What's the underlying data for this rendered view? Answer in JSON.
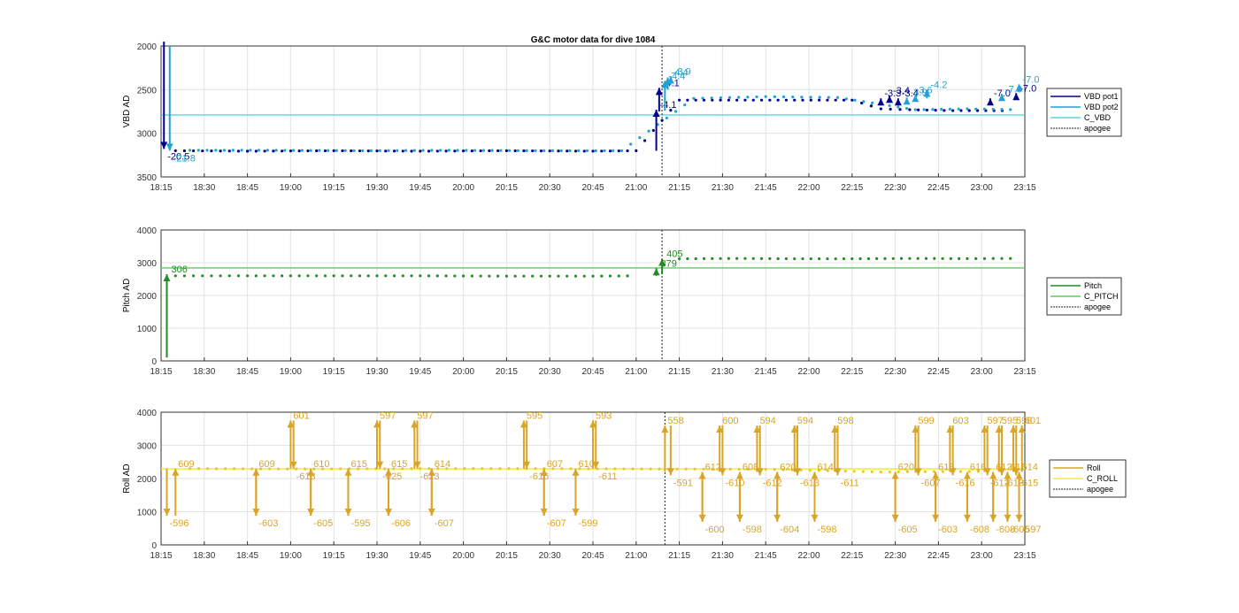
{
  "title": "G&C motor data for dive 1084",
  "x_ticks": [
    "18:15",
    "18:30",
    "18:45",
    "19:00",
    "19:15",
    "19:30",
    "19:45",
    "20:00",
    "20:15",
    "20:30",
    "20:45",
    "21:00",
    "21:15",
    "21:30",
    "21:45",
    "22:00",
    "22:15",
    "22:30",
    "22:45",
    "23:00",
    "23:15"
  ],
  "chart_data": [
    {
      "type": "line",
      "ylabel": "VBD AD",
      "xlim": [
        0,
        300
      ],
      "ylim": [
        3500,
        2000
      ],
      "yticks": [
        2000,
        2500,
        3000,
        3500
      ],
      "grid": true,
      "legend": "right",
      "apogee_x": 174,
      "series": [
        {
          "name": "VBD pot1",
          "color": "#00008b"
        },
        {
          "name": "VBD pot2",
          "color": "#1fa2d6"
        },
        {
          "name": "C_VBD",
          "color": "#55d7dd",
          "value": 2790
        },
        {
          "name": "apogee",
          "color": "#222222"
        }
      ],
      "dots_pot1": [
        [
          5,
          3200
        ],
        [
          30,
          3205
        ],
        [
          60,
          3200
        ],
        [
          90,
          3205
        ],
        [
          120,
          3200
        ],
        [
          150,
          3205
        ],
        [
          165,
          3200
        ],
        [
          180,
          2620
        ],
        [
          200,
          2620
        ],
        [
          220,
          2620
        ],
        [
          240,
          2620
        ],
        [
          250,
          2720
        ],
        [
          260,
          2730
        ],
        [
          275,
          2740
        ],
        [
          295,
          2740
        ]
      ],
      "dots_pot2": [
        [
          10,
          3195
        ],
        [
          40,
          3195
        ],
        [
          70,
          3200
        ],
        [
          100,
          3195
        ],
        [
          130,
          3200
        ],
        [
          160,
          3200
        ],
        [
          185,
          2600
        ],
        [
          210,
          2580
        ],
        [
          235,
          2590
        ],
        [
          262,
          2730
        ],
        [
          280,
          2720
        ],
        [
          298,
          2730
        ]
      ],
      "vbd_moves": [
        {
          "x": 1,
          "from": 1950,
          "to": 3180,
          "color": "#00008b",
          "label": "-20.5"
        },
        {
          "x": 3,
          "from": 2000,
          "to": 3200,
          "color": "#1fa2d6",
          "label": "-21.8"
        },
        {
          "x": 172,
          "from": 3200,
          "to": 2730,
          "color": "#00008b",
          "label": "-4.1"
        },
        {
          "x": 173,
          "from": 2750,
          "to": 2480,
          "color": "#00008b",
          "label": "-4.1"
        },
        {
          "x": 175,
          "from": 2740,
          "to": 2400,
          "color": "#1fa2d6",
          "label": "-4.4"
        },
        {
          "x": 176,
          "from": 2500,
          "to": 2360,
          "color": "#1fa2d6",
          "label": "-4.4"
        },
        {
          "x": 177,
          "from": 2400,
          "to": 2350,
          "color": "#1fa2d6",
          "label": "-3.9"
        },
        {
          "x": 250,
          "from": 2650,
          "to": 2600,
          "color": "#00008b",
          "label": "-3.3"
        },
        {
          "x": 253,
          "from": 2650,
          "to": 2570,
          "color": "#00008b",
          "label": "-3.4"
        },
        {
          "x": 256,
          "from": 2650,
          "to": 2600,
          "color": "#00008b",
          "label": "-3.4"
        },
        {
          "x": 259,
          "from": 2630,
          "to": 2590,
          "color": "#1fa2d6",
          "label": "-3.9"
        },
        {
          "x": 262,
          "from": 2620,
          "to": 2560,
          "color": "#1fa2d6",
          "label": "3.6"
        },
        {
          "x": 266,
          "from": 2600,
          "to": 2500,
          "color": "#1fa2d6",
          "label": "-4.2"
        },
        {
          "x": 288,
          "from": 2650,
          "to": 2600,
          "color": "#00008b",
          "label": "-7.0"
        },
        {
          "x": 292,
          "from": 2600,
          "to": 2550,
          "color": "#1fa2d6",
          "label": "-7.0"
        },
        {
          "x": 297,
          "from": 2580,
          "to": 2540,
          "color": "#00008b",
          "label": "-7.0"
        },
        {
          "x": 298,
          "from": 2500,
          "to": 2440,
          "color": "#1fa2d6",
          "label": "-7.0"
        }
      ]
    },
    {
      "type": "line",
      "ylabel": "Pitch AD",
      "xlim": [
        0,
        300
      ],
      "ylim": [
        0,
        4000
      ],
      "yticks": [
        0,
        1000,
        2000,
        3000,
        4000
      ],
      "grid": true,
      "legend": "right",
      "apogee_x": 174,
      "series": [
        {
          "name": "Pitch",
          "color": "#228b22"
        },
        {
          "name": "C_PITCH",
          "color": "#5ad05a",
          "value": 2840
        },
        {
          "name": "apogee",
          "color": "#222222"
        }
      ],
      "dots_before": [
        [
          5,
          2600
        ],
        [
          30,
          2600
        ],
        [
          60,
          2600
        ],
        [
          90,
          2600
        ],
        [
          120,
          2590
        ],
        [
          150,
          2590
        ],
        [
          165,
          2600
        ]
      ],
      "dots_after": [
        [
          180,
          3120
        ],
        [
          200,
          3130
        ],
        [
          220,
          3120
        ],
        [
          240,
          3120
        ],
        [
          260,
          3130
        ],
        [
          280,
          3125
        ],
        [
          298,
          3130
        ]
      ],
      "moves": [
        {
          "x": 2,
          "from": 100,
          "to": 2650,
          "label": "306"
        },
        {
          "x": 172,
          "from": 2600,
          "to": 2830,
          "label": "379"
        },
        {
          "x": 174,
          "from": 2650,
          "to": 3120,
          "label": "405"
        }
      ]
    },
    {
      "type": "line",
      "ylabel": "Roll AD",
      "xlim": [
        0,
        300
      ],
      "ylim": [
        0,
        4000
      ],
      "yticks": [
        0,
        1000,
        2000,
        3000,
        4000
      ],
      "grid": true,
      "legend": "right",
      "apogee_x": 175,
      "series": [
        {
          "name": "Roll",
          "color": "#d9a527"
        },
        {
          "name": "C_ROLL",
          "color": "#f3e84a",
          "value": 2290
        },
        {
          "name": "apogee",
          "color": "#222222"
        }
      ],
      "dots": [
        [
          10,
          2300
        ],
        [
          50,
          2290
        ],
        [
          90,
          2300
        ],
        [
          130,
          2300
        ],
        [
          170,
          2290
        ],
        [
          210,
          2280
        ],
        [
          250,
          2200
        ],
        [
          290,
          2220
        ]
      ],
      "moves": [
        {
          "x": 2,
          "from": 2300,
          "to": 880,
          "label": "-596"
        },
        {
          "x": 5,
          "from": 880,
          "to": 2300,
          "label": "609"
        },
        {
          "x": 33,
          "from": 2300,
          "to": 880,
          "label": "-603"
        },
        {
          "x": 33,
          "from": 880,
          "to": 2300,
          "label": "609"
        },
        {
          "x": 45,
          "from": 2300,
          "to": 3750,
          "label": "601"
        },
        {
          "x": 46,
          "from": 3750,
          "to": 2300,
          "label": "-613"
        },
        {
          "x": 52,
          "from": 2300,
          "to": 880,
          "label": "-605"
        },
        {
          "x": 52,
          "from": 880,
          "to": 2300,
          "label": "610"
        },
        {
          "x": 65,
          "from": 2300,
          "to": 880,
          "label": "-595"
        },
        {
          "x": 65,
          "from": 880,
          "to": 2300,
          "label": "615"
        },
        {
          "x": 75,
          "from": 2300,
          "to": 3750,
          "label": "597"
        },
        {
          "x": 76,
          "from": 3750,
          "to": 2300,
          "label": "-625"
        },
        {
          "x": 79,
          "from": 2300,
          "to": 880,
          "label": "-606"
        },
        {
          "x": 79,
          "from": 880,
          "to": 2300,
          "label": "615"
        },
        {
          "x": 88,
          "from": 2300,
          "to": 3750,
          "label": "597"
        },
        {
          "x": 89,
          "from": 3750,
          "to": 2300,
          "label": "-623"
        },
        {
          "x": 94,
          "from": 2300,
          "to": 880,
          "label": "-607"
        },
        {
          "x": 94,
          "from": 880,
          "to": 2300,
          "label": "614"
        },
        {
          "x": 126,
          "from": 2300,
          "to": 3750,
          "label": "595"
        },
        {
          "x": 127,
          "from": 3750,
          "to": 2300,
          "label": "-616"
        },
        {
          "x": 133,
          "from": 2300,
          "to": 880,
          "label": "-607"
        },
        {
          "x": 133,
          "from": 880,
          "to": 2300,
          "label": "607"
        },
        {
          "x": 144,
          "from": 2300,
          "to": 880,
          "label": "-599"
        },
        {
          "x": 144,
          "from": 880,
          "to": 2300,
          "label": "610"
        },
        {
          "x": 150,
          "from": 2300,
          "to": 3750,
          "label": "593"
        },
        {
          "x": 151,
          "from": 3750,
          "to": 2300,
          "label": "-611"
        },
        {
          "x": 175,
          "from": 2200,
          "to": 3600,
          "label": "558"
        },
        {
          "x": 177,
          "from": 3600,
          "to": 2100,
          "label": "-591"
        },
        {
          "x": 188,
          "from": 2200,
          "to": 700,
          "label": "-600"
        },
        {
          "x": 188,
          "from": 700,
          "to": 2200,
          "label": "612"
        },
        {
          "x": 194,
          "from": 2200,
          "to": 3600,
          "label": "600"
        },
        {
          "x": 195,
          "from": 3600,
          "to": 2100,
          "label": "-610"
        },
        {
          "x": 201,
          "from": 2200,
          "to": 700,
          "label": "-598"
        },
        {
          "x": 201,
          "from": 700,
          "to": 2200,
          "label": "608"
        },
        {
          "x": 207,
          "from": 2200,
          "to": 3600,
          "label": "594"
        },
        {
          "x": 208,
          "from": 3600,
          "to": 2100,
          "label": "-612"
        },
        {
          "x": 214,
          "from": 2200,
          "to": 700,
          "label": "-604"
        },
        {
          "x": 214,
          "from": 700,
          "to": 2200,
          "label": "620"
        },
        {
          "x": 220,
          "from": 2200,
          "to": 3600,
          "label": "594"
        },
        {
          "x": 221,
          "from": 3600,
          "to": 2100,
          "label": "-613"
        },
        {
          "x": 227,
          "from": 2200,
          "to": 700,
          "label": "-598"
        },
        {
          "x": 227,
          "from": 700,
          "to": 2200,
          "label": "614"
        },
        {
          "x": 234,
          "from": 2200,
          "to": 3600,
          "label": "598"
        },
        {
          "x": 235,
          "from": 3600,
          "to": 2100,
          "label": "-611"
        },
        {
          "x": 255,
          "from": 2200,
          "to": 700,
          "label": "-605"
        },
        {
          "x": 255,
          "from": 700,
          "to": 2200,
          "label": "620"
        },
        {
          "x": 262,
          "from": 2200,
          "to": 3600,
          "label": "599"
        },
        {
          "x": 263,
          "from": 3600,
          "to": 2100,
          "label": "-607"
        },
        {
          "x": 269,
          "from": 2200,
          "to": 700,
          "label": "-603"
        },
        {
          "x": 269,
          "from": 700,
          "to": 2200,
          "label": "618"
        },
        {
          "x": 274,
          "from": 2200,
          "to": 3600,
          "label": "603"
        },
        {
          "x": 275,
          "from": 3600,
          "to": 2100,
          "label": "-616"
        },
        {
          "x": 280,
          "from": 2200,
          "to": 700,
          "label": "-608"
        },
        {
          "x": 280,
          "from": 700,
          "to": 2200,
          "label": "616"
        },
        {
          "x": 286,
          "from": 2200,
          "to": 3600,
          "label": "597"
        },
        {
          "x": 287,
          "from": 3600,
          "to": 2100,
          "label": "-612"
        },
        {
          "x": 289,
          "from": 2200,
          "to": 700,
          "label": "-608"
        },
        {
          "x": 289,
          "from": 700,
          "to": 2200,
          "label": "612"
        },
        {
          "x": 291,
          "from": 2200,
          "to": 3600,
          "label": "595"
        },
        {
          "x": 292,
          "from": 3600,
          "to": 2100,
          "label": "-613"
        },
        {
          "x": 294,
          "from": 2200,
          "to": 700,
          "label": "-605"
        },
        {
          "x": 294,
          "from": 700,
          "to": 2200,
          "label": "618"
        },
        {
          "x": 296,
          "from": 2200,
          "to": 3600,
          "label": "598"
        },
        {
          "x": 297,
          "from": 3600,
          "to": 2100,
          "label": "-615"
        },
        {
          "x": 298,
          "from": 2200,
          "to": 700,
          "label": "-597"
        },
        {
          "x": 298,
          "from": 700,
          "to": 2200,
          "label": "614"
        },
        {
          "x": 299,
          "from": 2200,
          "to": 3600,
          "label": "601"
        }
      ]
    }
  ]
}
